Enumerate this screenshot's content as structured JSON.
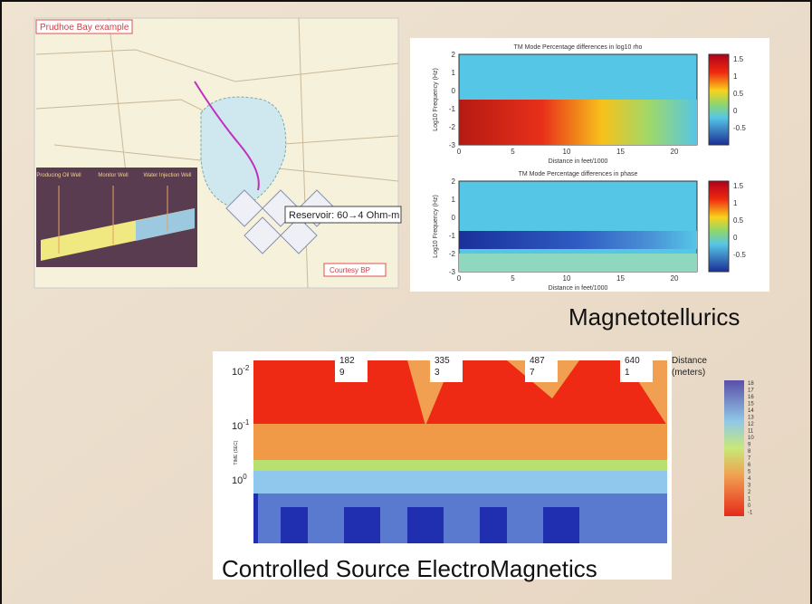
{
  "map": {
    "title": "Prudhoe Bay example",
    "reservoir": "Reservoir: 60→4 Ohm-m",
    "credit": "Courtesy BP",
    "wells": [
      "Producing Oil Well",
      "Monitor Well",
      "Water Injection Well"
    ]
  },
  "mt": {
    "plots": [
      {
        "title": "TM Mode  Percentage differences in log10 rho",
        "xlabel": "Distance in feet/1000",
        "ylabel": "Log10 Frequency (Hz)"
      },
      {
        "title": "TM Mode  Percentage differences in phase",
        "xlabel": "Distance in feet/1000",
        "ylabel": "Log10 Frequency (Hz)"
      }
    ],
    "xticks": [
      "0",
      "5",
      "10",
      "15",
      "20"
    ],
    "yticks": [
      "2",
      "1",
      "0",
      "-1",
      "-2",
      "-3"
    ],
    "cbar_ticks": [
      "1.5",
      "1",
      "0.5",
      "0",
      "-0.5"
    ],
    "caption": "Magnetotellurics"
  },
  "csem": {
    "xticks": [
      [
        "182",
        "9"
      ],
      [
        "335",
        "3"
      ],
      [
        "487",
        "7"
      ],
      [
        "640",
        "1"
      ]
    ],
    "xlabel": [
      "Distance",
      "(meters)"
    ],
    "yticks": [
      {
        "base": "10",
        "exp": "-2"
      },
      {
        "base": "10",
        "exp": "-1"
      },
      {
        "base": "10",
        "exp": "0"
      }
    ],
    "ylabel": "TIME (SEC)",
    "cbar_ticks": [
      "18",
      "17",
      "16",
      "15",
      "14",
      "13",
      "12",
      "11",
      "10",
      "9",
      "8",
      "7",
      "6",
      "5",
      "4",
      "3",
      "2",
      "1",
      "0",
      "-1"
    ],
    "caption": "Controlled  Source ElectroMagnetics"
  }
}
